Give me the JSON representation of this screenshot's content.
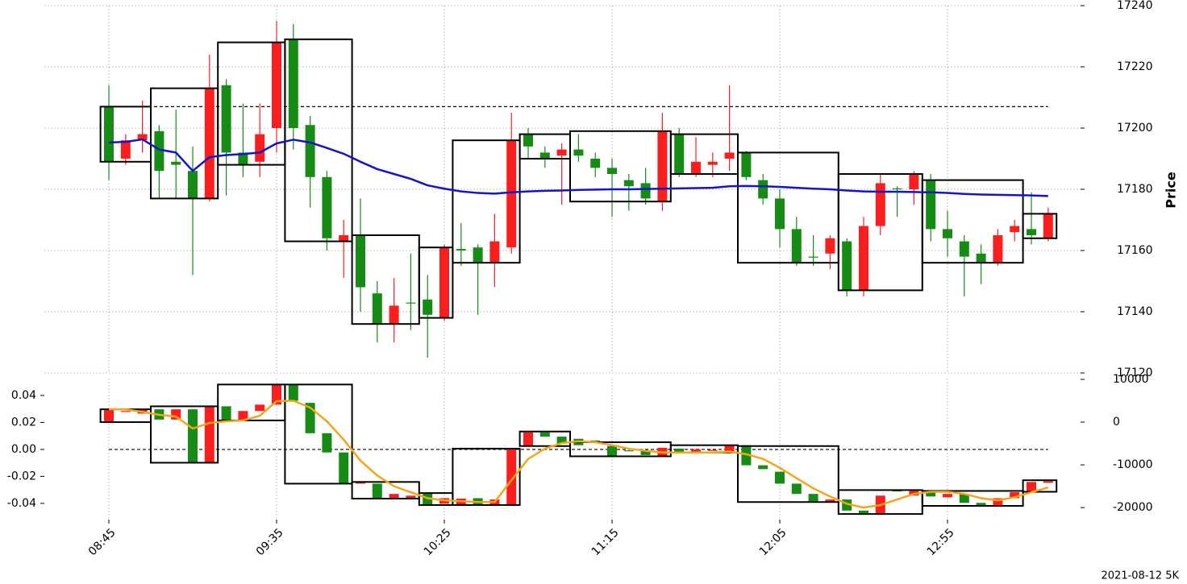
{
  "footer": "2021-08-12 5K",
  "chart_data": [
    {
      "type": "candlestick",
      "y_label": "Price",
      "categories": [
        "08:45",
        null,
        null,
        null,
        null,
        null,
        null,
        null,
        null,
        null,
        "09:35",
        null,
        null,
        null,
        null,
        null,
        null,
        null,
        null,
        null,
        "10:25",
        null,
        null,
        null,
        null,
        null,
        null,
        null,
        null,
        null,
        "11:15",
        null,
        null,
        null,
        null,
        null,
        null,
        null,
        null,
        null,
        "12:05",
        null,
        null,
        null,
        null,
        null,
        null,
        null,
        null,
        null,
        "12:55",
        null,
        null,
        null,
        null,
        null,
        null
      ],
      "open": [
        17189,
        17196,
        17198,
        17186,
        17188,
        17177,
        17213,
        17192,
        17188,
        17198,
        17228,
        17200,
        17184,
        17164,
        17165,
        17148,
        17136,
        17142,
        17143,
        17139,
        17161,
        17160,
        17156,
        17163,
        17196,
        17194,
        17190,
        17193,
        17191,
        17187,
        17185,
        17181,
        17177,
        17199,
        17185,
        17189,
        17189,
        17192,
        17184,
        17177,
        17167,
        17156,
        17158,
        17164,
        17147,
        17168,
        17182,
        17180,
        17185,
        17167,
        17164,
        17158,
        17156,
        17165,
        17168,
        17165,
        17172
      ],
      "high": [
        17214,
        17198,
        17209,
        17201,
        17206,
        17194,
        17224,
        17216,
        17208,
        17208,
        17235,
        17234,
        17204,
        17186,
        17170,
        17177,
        17150,
        17151,
        17159,
        17152,
        17162,
        17169,
        17162,
        17172,
        17205,
        17200,
        17194,
        17195,
        17198,
        17192,
        17190,
        17185,
        17187,
        17205,
        17200,
        17197,
        17192,
        17214,
        17192.5,
        17185,
        17180,
        17171,
        17165,
        17165,
        17164,
        17171,
        17185,
        17181,
        17186,
        17185,
        17173,
        17165,
        17162,
        17167,
        17170,
        17179,
        17174
      ],
      "low": [
        17183,
        17188,
        17192,
        17177,
        17177,
        17152,
        17176,
        17178,
        17184,
        17184,
        17192,
        17193,
        17174,
        17160,
        17151,
        17140,
        17130,
        17130,
        17134,
        17125,
        17137,
        17155,
        17139,
        17148,
        17159,
        17190,
        17187,
        17175,
        17189,
        17184,
        17171,
        17173,
        17175,
        17173,
        17184,
        17184,
        17184,
        17186,
        17183,
        17175,
        17161,
        17155,
        17155,
        17154,
        17145,
        17145,
        17165,
        17171,
        17175,
        17163,
        17158,
        17145,
        17149,
        17155,
        17163,
        17162,
        17163
      ],
      "close": [
        17207,
        17190,
        17196,
        17199,
        17189,
        17186,
        17177,
        17214,
        17192,
        17189,
        17200,
        17229,
        17201,
        17184,
        17163,
        17165,
        17146,
        17136,
        17143,
        17144,
        17138,
        17160.5,
        17161,
        17156,
        17161,
        17198,
        17192,
        17191,
        17193,
        17190,
        17187,
        17183,
        17182,
        17176,
        17198,
        17185,
        17188,
        17190,
        17192,
        17183,
        17177,
        17167,
        17158,
        17159,
        17163,
        17147,
        17168,
        17180.3,
        17180,
        17183,
        17167,
        17163,
        17159,
        17156,
        17166,
        17167,
        17164
      ],
      "up_color": "#168c16",
      "down_color": "#fa1e1e",
      "lines": [
        {
          "color": "#1414c8",
          "values": [
            17195.3,
            17195.5,
            17196.3,
            17193,
            17192,
            17186,
            17190.5,
            17191.2,
            17191.5,
            17192,
            17195,
            17196.2,
            17195.3,
            17193.5,
            17191.6,
            17189,
            17186.6,
            17185,
            17183.4,
            17181.3,
            17180.2,
            17179.3,
            17178.8,
            17178.6,
            17179,
            17179.3,
            17179.5,
            17179.6,
            17179.8,
            17179.9,
            17180,
            17180,
            17180.1,
            17180.2,
            17180.3,
            17180.4,
            17180.5,
            17181,
            17181.1,
            17181,
            17180.8,
            17180.5,
            17180.2,
            17180,
            17179.6,
            17179.3,
            17179.2,
            17179.2,
            17179.1,
            17179,
            17178.8,
            17178.5,
            17178.3,
            17178.2,
            17178.1,
            17178,
            17177.8
          ]
        }
      ],
      "boxes": [
        {
          "first": 0,
          "last": 2,
          "top": 17207,
          "bottom": 17189
        },
        {
          "first": 3,
          "last": 6,
          "top": 17213,
          "bottom": 17177
        },
        {
          "first": 7,
          "last": 10,
          "top": 17228,
          "bottom": 17188
        },
        {
          "first": 11,
          "last": 14,
          "top": 17229,
          "bottom": 17163
        },
        {
          "first": 15,
          "last": 18,
          "top": 17165,
          "bottom": 17136
        },
        {
          "first": 19,
          "last": 20,
          "top": 17161,
          "bottom": 17138
        },
        {
          "first": 21,
          "last": 24,
          "top": 17196,
          "bottom": 17156
        },
        {
          "first": 25,
          "last": 27,
          "top": 17198,
          "bottom": 17190
        },
        {
          "first": 28,
          "last": 33,
          "top": 17199,
          "bottom": 17176
        },
        {
          "first": 34,
          "last": 37,
          "top": 17198,
          "bottom": 17185
        },
        {
          "first": 38,
          "last": 43,
          "top": 17192,
          "bottom": 17156
        },
        {
          "first": 44,
          "last": 48,
          "top": 17185,
          "bottom": 17147
        },
        {
          "first": 49,
          "last": 54,
          "top": 17183,
          "bottom": 17156
        },
        {
          "first": 55,
          "last": 56,
          "top": 17172,
          "bottom": 17164
        }
      ],
      "box_color": "#000000",
      "hline": 17207,
      "ylim": [
        17120,
        17240
      ],
      "yticks": [
        17120,
        17140,
        17160,
        17180,
        17200,
        17220,
        17240
      ],
      "y_axis_side": "right",
      "grid": true
    },
    {
      "type": "candlestick",
      "open": [
        3000,
        2600,
        3000,
        600,
        3000,
        -9500,
        3700,
        400,
        2600,
        4100,
        8800,
        5000,
        -2600,
        -7100,
        -14400,
        -14000,
        -17800,
        -16800,
        -17200,
        -19400,
        -17800,
        -17900,
        -19400,
        -18100,
        -6200,
        -2400,
        -3400,
        -5000,
        -5400,
        -4300,
        -8000,
        -6700,
        -7700,
        -6000,
        -6900,
        -6400,
        -6500,
        -5400,
        -10100,
        -11000,
        -14400,
        -16800,
        -18500,
        -18100,
        -20700,
        -21300,
        -17200,
        -16100,
        -16100,
        -17400,
        -16800,
        -18900,
        -19600,
        -17800,
        -16400,
        -14000,
        -13800
      ],
      "close": [
        200,
        2500,
        2000,
        3000,
        600,
        3000,
        -9500,
        3700,
        400,
        2600,
        4100,
        8800,
        4500,
        -2600,
        -7100,
        -14400,
        -14400,
        -17800,
        -17900,
        -16600,
        -19100,
        -19400,
        -17800,
        -19400,
        -19400,
        -5600,
        -2400,
        -3400,
        -3900,
        -4300,
        -5600,
        -6600,
        -6700,
        -8000,
        -6200,
        -7100,
        -6600,
        -7100,
        -5400,
        -10100,
        -11600,
        -14400,
        -16800,
        -18700,
        -18100,
        -20700,
        -21500,
        -16000,
        -17200,
        -16100,
        -17600,
        -16800,
        -18900,
        -19400,
        -17800,
        -16100,
        -14200
      ],
      "candles_axis": "y2",
      "up_color": "#168c16",
      "down_color": "#fa1e1e",
      "lines": [
        {
          "color": "#f5a516",
          "axis": "y2",
          "values": [
            3000,
            3000,
            2400,
            1700,
            1300,
            -1500,
            -200,
            200,
            400,
            1500,
            4900,
            5000,
            3400,
            200,
            -4100,
            -9000,
            -12500,
            -15000,
            -16400,
            -17800,
            -18300,
            -18500,
            -18700,
            -18700,
            -13600,
            -8600,
            -6200,
            -4900,
            -4500,
            -4700,
            -5400,
            -6200,
            -6700,
            -7100,
            -7100,
            -7100,
            -7100,
            -6900,
            -7500,
            -8600,
            -10700,
            -13100,
            -15500,
            -17400,
            -19100,
            -20000,
            -19400,
            -18100,
            -16800,
            -16300,
            -16300,
            -16800,
            -17800,
            -18300,
            -17600,
            -16400,
            -15300
          ]
        }
      ],
      "boxes": [
        {
          "first": 0,
          "last": 2,
          "top": 3000,
          "bottom": 0
        },
        {
          "first": 3,
          "last": 6,
          "top": 3700,
          "bottom": -9500
        },
        {
          "first": 7,
          "last": 10,
          "top": 8800,
          "bottom": 400
        },
        {
          "first": 11,
          "last": 14,
          "top": 8800,
          "bottom": -14400
        },
        {
          "first": 15,
          "last": 18,
          "top": -14000,
          "bottom": -17900
        },
        {
          "first": 19,
          "last": 20,
          "top": -16600,
          "bottom": -19400
        },
        {
          "first": 21,
          "last": 24,
          "top": -6200,
          "bottom": -19400
        },
        {
          "first": 25,
          "last": 27,
          "top": -2200,
          "bottom": -5600
        },
        {
          "first": 28,
          "last": 33,
          "top": -4700,
          "bottom": -8000
        },
        {
          "first": 34,
          "last": 37,
          "top": -5400,
          "bottom": -7100
        },
        {
          "first": 38,
          "last": 43,
          "top": -5600,
          "bottom": -18700
        },
        {
          "first": 44,
          "last": 48,
          "top": -15900,
          "bottom": -21500
        },
        {
          "first": 49,
          "last": 54,
          "top": -16100,
          "bottom": -19600
        },
        {
          "first": 55,
          "last": 56,
          "top": -13600,
          "bottom": -16300
        }
      ],
      "boxes_axis": "y2",
      "box_color": "#000000",
      "hline": 0,
      "ylim": [
        -0.052,
        0.0525
      ],
      "yticks": [
        0.04,
        0.02,
        {
          "value": 0,
          "label": "0.00"
        },
        -0.02,
        -0.04
      ],
      "y_axis_side": "left",
      "y2lim": [
        -22800,
        10187
      ],
      "y2ticks": [
        10000,
        0,
        -10000,
        -20000
      ],
      "grid": "x"
    }
  ]
}
